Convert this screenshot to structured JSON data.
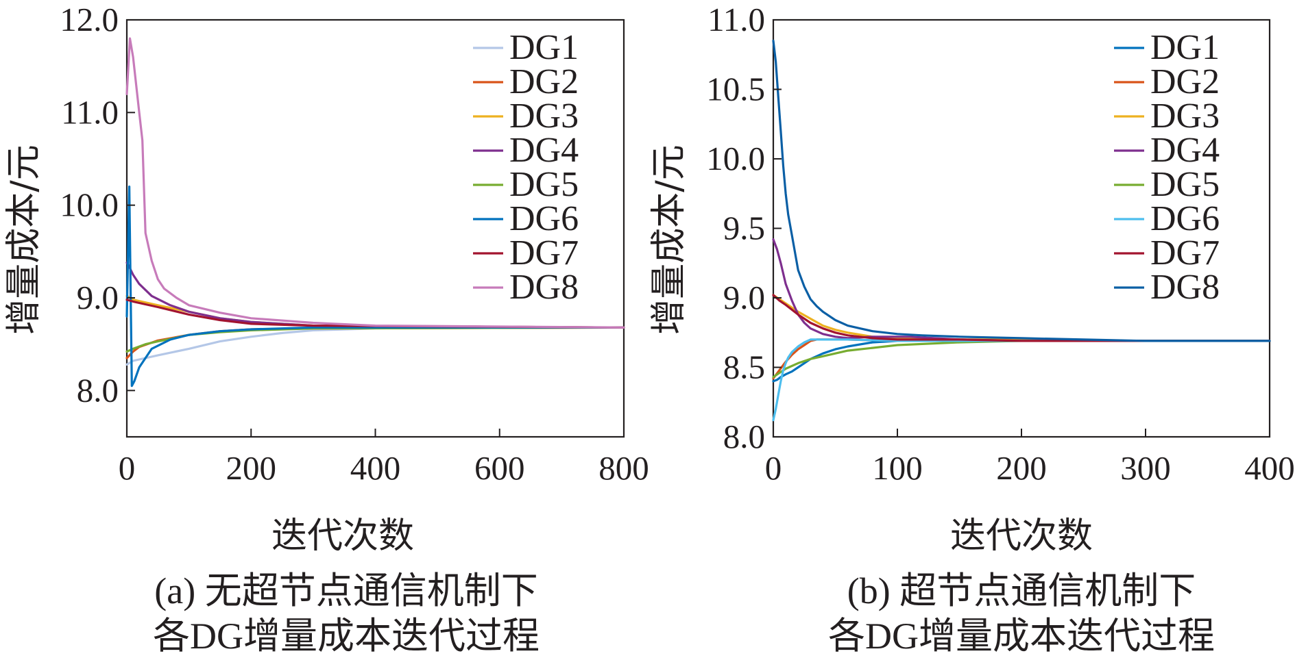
{
  "chart_data": [
    {
      "type": "line",
      "panel": "a",
      "caption_line1": "(a)  无超节点通信机制下",
      "caption_line2": "各DG增量成本迭代过程",
      "xlabel": "迭代次数",
      "ylabel": "增量成本/元",
      "xlim": [
        0,
        800
      ],
      "ylim": [
        7.5,
        12.0
      ],
      "xticks": [
        0,
        200,
        400,
        600,
        800
      ],
      "xtick_labels": [
        "0",
        "200",
        "400",
        "600",
        "800"
      ],
      "yticks": [
        8.0,
        9.0,
        10.0,
        11.0,
        12.0
      ],
      "ytick_labels": [
        "8.0",
        "9.0",
        "10.0",
        "11.0",
        "12.0"
      ],
      "grid": false,
      "legend_position": "top-right",
      "series": [
        {
          "name": "DG1",
          "color": "#b4c7e7",
          "x": [
            0,
            10,
            50,
            100,
            150,
            200,
            250,
            300,
            400,
            500,
            800
          ],
          "y": [
            8.28,
            8.32,
            8.38,
            8.45,
            8.53,
            8.58,
            8.62,
            8.65,
            8.67,
            8.68,
            8.68
          ]
        },
        {
          "name": "DG2",
          "color": "#d95319",
          "x": [
            0,
            10,
            20,
            50,
            100,
            150,
            200,
            300,
            800
          ],
          "y": [
            8.35,
            8.42,
            8.47,
            8.54,
            8.6,
            8.64,
            8.66,
            8.67,
            8.68
          ]
        },
        {
          "name": "DG3",
          "color": "#edb120",
          "x": [
            0,
            10,
            50,
            100,
            150,
            200,
            300,
            800
          ],
          "y": [
            9.02,
            8.98,
            8.92,
            8.85,
            8.78,
            8.74,
            8.7,
            8.68
          ]
        },
        {
          "name": "DG4",
          "color": "#7e2f8e",
          "x": [
            0,
            5,
            10,
            20,
            40,
            70,
            100,
            150,
            200,
            300,
            800
          ],
          "y": [
            9.38,
            9.32,
            9.25,
            9.15,
            9.02,
            8.92,
            8.85,
            8.78,
            8.74,
            8.7,
            8.68
          ]
        },
        {
          "name": "DG5",
          "color": "#77ac30",
          "x": [
            0,
            10,
            30,
            50,
            80,
            100,
            150,
            200,
            300,
            800
          ],
          "y": [
            8.42,
            8.45,
            8.5,
            8.53,
            8.57,
            8.6,
            8.63,
            8.65,
            8.67,
            8.68
          ]
        },
        {
          "name": "DG6",
          "color": "#0072bd",
          "x": [
            0,
            4,
            8,
            12,
            20,
            40,
            70,
            100,
            150,
            200,
            300,
            800
          ],
          "y": [
            8.8,
            10.2,
            8.05,
            8.1,
            8.25,
            8.45,
            8.55,
            8.6,
            8.64,
            8.66,
            8.68,
            8.68
          ]
        },
        {
          "name": "DG7",
          "color": "#a2142f",
          "x": [
            0,
            10,
            30,
            50,
            100,
            150,
            200,
            300,
            800
          ],
          "y": [
            8.98,
            8.96,
            8.93,
            8.9,
            8.82,
            8.76,
            8.72,
            8.7,
            8.68
          ]
        },
        {
          "name": "DG8",
          "color": "#c77bba",
          "x": [
            0,
            5,
            10,
            15,
            20,
            25,
            30,
            40,
            50,
            60,
            80,
            100,
            150,
            200,
            300,
            400,
            800
          ],
          "y": [
            11.2,
            11.8,
            11.6,
            11.3,
            11.0,
            10.7,
            9.7,
            9.4,
            9.2,
            9.1,
            9.0,
            8.92,
            8.84,
            8.78,
            8.73,
            8.7,
            8.68
          ]
        }
      ]
    },
    {
      "type": "line",
      "panel": "b",
      "caption_line1": "(b)  超节点通信机制下",
      "caption_line2": "各DG增量成本迭代过程",
      "xlabel": "迭代次数",
      "ylabel": "增量成本/元",
      "xlim": [
        0,
        400
      ],
      "ylim": [
        8.0,
        11.0
      ],
      "xticks": [
        0,
        100,
        200,
        300,
        400
      ],
      "xtick_labels": [
        "0",
        "100",
        "200",
        "300",
        "400"
      ],
      "yticks": [
        8.0,
        8.5,
        9.0,
        9.5,
        10.0,
        10.5,
        11.0
      ],
      "ytick_labels": [
        "8.0",
        "8.5",
        "9.0",
        "9.5",
        "10.0",
        "10.5",
        "11.0"
      ],
      "grid": false,
      "legend_position": "top-right",
      "series": [
        {
          "name": "DG1",
          "color": "#0072bd",
          "x": [
            0,
            3,
            6,
            10,
            15,
            20,
            25,
            30,
            40,
            50,
            60,
            80,
            100,
            150,
            200,
            300,
            400
          ],
          "y": [
            8.4,
            8.41,
            8.43,
            8.45,
            8.47,
            8.5,
            8.53,
            8.56,
            8.6,
            8.63,
            8.65,
            8.68,
            8.69,
            8.69,
            8.69,
            8.69,
            8.69
          ]
        },
        {
          "name": "DG2",
          "color": "#d95319",
          "x": [
            0,
            5,
            10,
            15,
            20,
            25,
            30,
            35,
            40,
            60,
            100,
            200,
            400
          ],
          "y": [
            8.42,
            8.48,
            8.54,
            8.59,
            8.63,
            8.66,
            8.69,
            8.7,
            8.7,
            8.7,
            8.69,
            8.69,
            8.69
          ]
        },
        {
          "name": "DG3",
          "color": "#edb120",
          "x": [
            0,
            5,
            10,
            20,
            30,
            40,
            50,
            60,
            80,
            100,
            150,
            200,
            300,
            400
          ],
          "y": [
            9.02,
            8.99,
            8.96,
            8.9,
            8.85,
            8.8,
            8.77,
            8.75,
            8.72,
            8.71,
            8.7,
            8.7,
            8.69,
            8.69
          ]
        },
        {
          "name": "DG4",
          "color": "#7e2f8e",
          "x": [
            0,
            3,
            6,
            10,
            15,
            20,
            25,
            30,
            40,
            50,
            60,
            80,
            100,
            110,
            150,
            200,
            400
          ],
          "y": [
            9.42,
            9.35,
            9.25,
            9.1,
            8.98,
            8.88,
            8.82,
            8.78,
            8.74,
            8.72,
            8.71,
            8.72,
            8.72,
            8.72,
            8.7,
            8.69,
            8.69
          ]
        },
        {
          "name": "DG5",
          "color": "#77ac30",
          "x": [
            0,
            5,
            10,
            20,
            30,
            40,
            50,
            60,
            80,
            100,
            150,
            200,
            400
          ],
          "y": [
            8.43,
            8.46,
            8.49,
            8.53,
            8.56,
            8.58,
            8.6,
            8.62,
            8.64,
            8.66,
            8.68,
            8.69,
            8.69
          ]
        },
        {
          "name": "DG6",
          "color": "#4dbeee",
          "x": [
            0,
            2,
            4,
            6,
            8,
            10,
            12,
            15,
            20,
            25,
            30,
            35,
            40,
            60,
            100,
            200,
            400
          ],
          "y": [
            8.12,
            8.2,
            8.3,
            8.4,
            8.48,
            8.53,
            8.57,
            8.61,
            8.65,
            8.68,
            8.7,
            8.7,
            8.7,
            8.7,
            8.69,
            8.69,
            8.69
          ]
        },
        {
          "name": "DG7",
          "color": "#a2142f",
          "x": [
            0,
            5,
            10,
            20,
            30,
            40,
            50,
            60,
            80,
            100,
            150,
            200,
            400
          ],
          "y": [
            9.02,
            8.98,
            8.95,
            8.88,
            8.82,
            8.78,
            8.75,
            8.73,
            8.71,
            8.7,
            8.7,
            8.69,
            8.69
          ]
        },
        {
          "name": "DG8",
          "color": "#0b5fa5",
          "x": [
            0,
            2,
            4,
            6,
            8,
            10,
            12,
            15,
            18,
            20,
            25,
            30,
            35,
            40,
            50,
            60,
            70,
            80,
            100,
            120,
            150,
            200,
            250,
            300,
            400
          ],
          "y": [
            10.85,
            10.7,
            10.45,
            10.2,
            9.95,
            9.75,
            9.6,
            9.45,
            9.3,
            9.2,
            9.08,
            8.99,
            8.94,
            8.9,
            8.84,
            8.8,
            8.78,
            8.76,
            8.74,
            8.73,
            8.72,
            8.71,
            8.7,
            8.69,
            8.69
          ]
        }
      ]
    }
  ]
}
